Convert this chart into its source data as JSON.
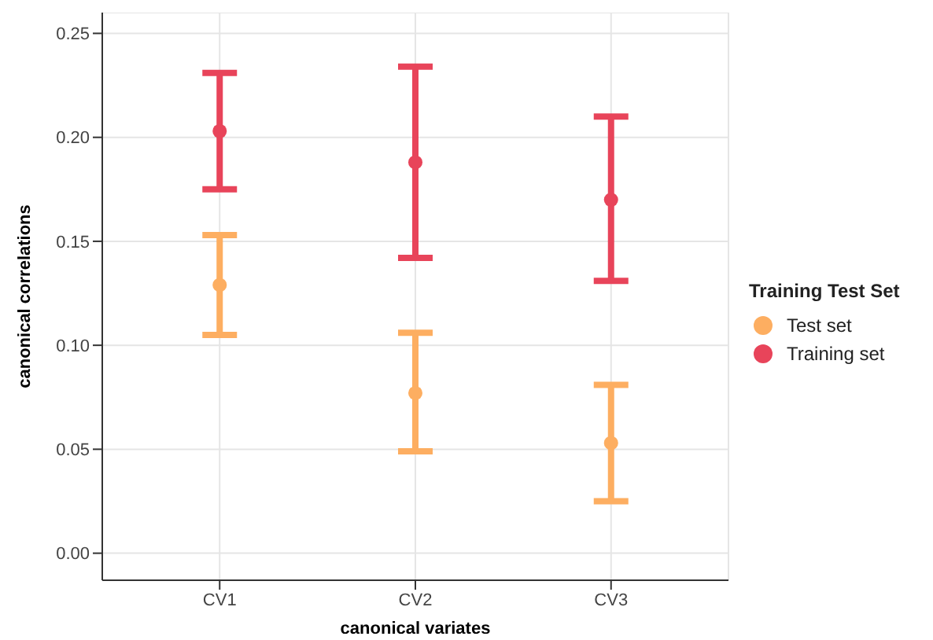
{
  "chart_data": {
    "type": "scatter",
    "xlabel": "canonical variates",
    "ylabel": "canonical correlations",
    "legend_title": "Training Test Set",
    "categories": [
      "CV1",
      "CV2",
      "CV3"
    ],
    "series": [
      {
        "name": "Test set",
        "color": "#fdae61",
        "values": [
          0.129,
          0.077,
          0.053
        ],
        "errors": [
          [
            0.105,
            0.153
          ],
          [
            0.049,
            0.106
          ],
          [
            0.025,
            0.081
          ]
        ]
      },
      {
        "name": "Training set",
        "color": "#e8445a",
        "values": [
          0.203,
          0.188,
          0.17
        ],
        "errors": [
          [
            0.175,
            0.231
          ],
          [
            0.142,
            0.234
          ],
          [
            0.131,
            0.21
          ]
        ]
      }
    ],
    "ylim": [
      -0.013,
      0.26
    ],
    "yticks": [
      {
        "value": 0,
        "label": "0.00"
      },
      {
        "value": 0.05,
        "label": "0.05"
      },
      {
        "value": 0.1,
        "label": "0.10"
      },
      {
        "value": 0.15,
        "label": "0.15"
      },
      {
        "value": 0.2,
        "label": "0.20"
      },
      {
        "value": 0.25,
        "label": "0.25"
      }
    ],
    "grid": true,
    "legend": "right",
    "marker": "circle"
  }
}
